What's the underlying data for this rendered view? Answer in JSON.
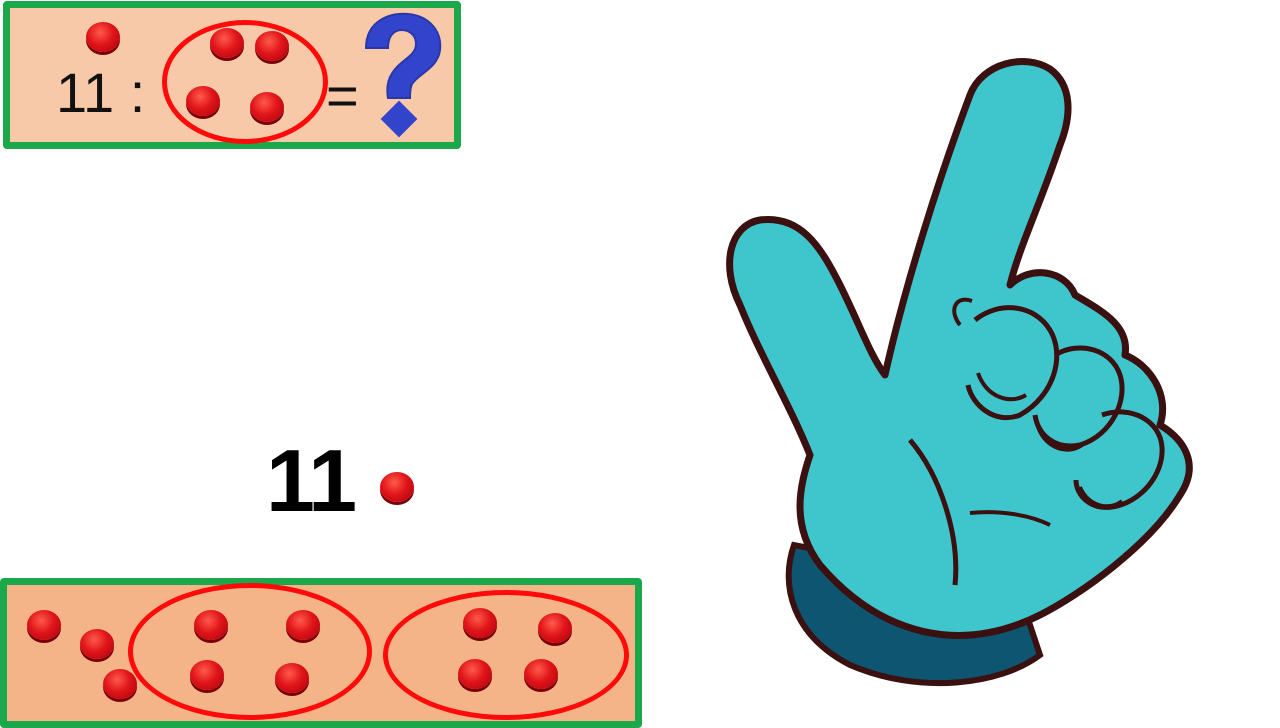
{
  "top_panel": {
    "equation_left": "11 :",
    "equals": "="
  },
  "big_number": "11",
  "icons": {
    "question": "question-mark-icon",
    "hand": "hand-pointing-up-icon",
    "counter": "red-counter-icon"
  },
  "colors": {
    "panel_border": "#1aa84a",
    "panel_fill_top": "#f7c9a8",
    "panel_fill_bottom": "#f4b488",
    "counter": "#e0151a",
    "ring": "#ff0a0a",
    "question_mark": "#3344cc",
    "hand": "#3fc6cc",
    "cuff": "#0d5570"
  }
}
